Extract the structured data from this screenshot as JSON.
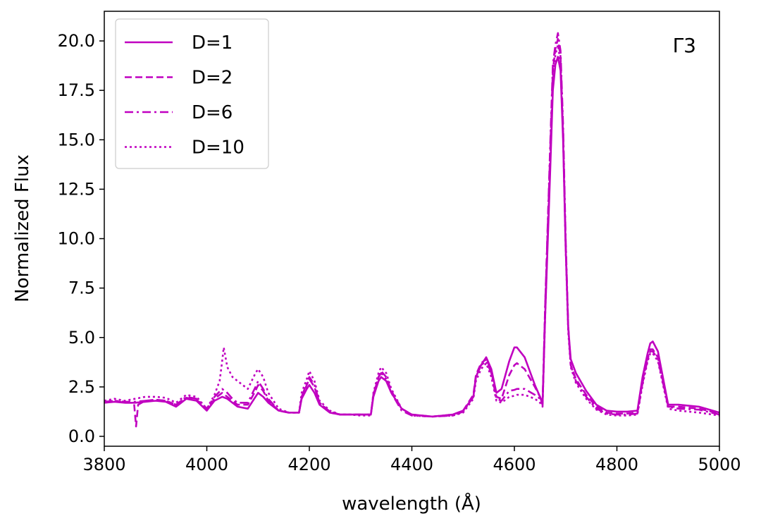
{
  "chart_data": {
    "type": "line",
    "title": "",
    "annotation": "Γ3",
    "xlabel": "wavelength (Å)",
    "ylabel": "Normalized Flux",
    "xlim": [
      3800,
      5000
    ],
    "ylim": [
      -0.5,
      21.5
    ],
    "xticks": [
      3800,
      4000,
      4200,
      4400,
      4600,
      4800,
      5000
    ],
    "yticks": [
      0.0,
      2.5,
      5.0,
      7.5,
      10.0,
      12.5,
      15.0,
      17.5,
      20.0
    ],
    "xtick_labels": [
      "3800",
      "4000",
      "4200",
      "4400",
      "4600",
      "4800",
      "5000"
    ],
    "ytick_labels": [
      "0.0",
      "2.5",
      "5.0",
      "7.5",
      "10.0",
      "12.5",
      "15.0",
      "17.5",
      "20.0"
    ],
    "grid": false,
    "legend_position": "top-left",
    "line_color": "#c000c0",
    "series": [
      {
        "name": "D=1",
        "linestyle": "solid",
        "x": [
          3800,
          3820,
          3840,
          3860,
          3880,
          3900,
          3920,
          3940,
          3960,
          3980,
          4000,
          4015,
          4030,
          4040,
          4050,
          4060,
          4080,
          4095,
          4100,
          4110,
          4120,
          4140,
          4160,
          4180,
          4185,
          4195,
          4200,
          4210,
          4220,
          4240,
          4260,
          4280,
          4300,
          4320,
          4325,
          4335,
          4340,
          4350,
          4360,
          4380,
          4400,
          4440,
          4480,
          4500,
          4520,
          4525,
          4535,
          4545,
          4555,
          4565,
          4575,
          4590,
          4600,
          4605,
          4620,
          4640,
          4650,
          4655,
          4660,
          4670,
          4675,
          4680,
          4685,
          4690,
          4695,
          4700,
          4705,
          4710,
          4720,
          4740,
          4760,
          4780,
          4800,
          4820,
          4840,
          4850,
          4860,
          4865,
          4870,
          4880,
          4900,
          4920,
          4960,
          5000
        ],
        "y": [
          1.7,
          1.75,
          1.7,
          1.7,
          1.75,
          1.8,
          1.75,
          1.5,
          1.9,
          1.8,
          1.3,
          1.8,
          2.0,
          1.9,
          1.7,
          1.5,
          1.4,
          2.0,
          2.2,
          2.0,
          1.7,
          1.3,
          1.2,
          1.2,
          1.9,
          2.4,
          2.6,
          2.2,
          1.6,
          1.2,
          1.1,
          1.1,
          1.1,
          1.1,
          2.0,
          2.8,
          3.0,
          2.8,
          2.2,
          1.4,
          1.1,
          1.0,
          1.1,
          1.3,
          2.0,
          3.0,
          3.6,
          4.0,
          3.4,
          2.2,
          2.4,
          3.8,
          4.5,
          4.5,
          4.0,
          2.6,
          2.0,
          1.6,
          6.0,
          13.5,
          17.5,
          18.8,
          19.2,
          18.5,
          15.0,
          9.5,
          5.5,
          3.9,
          3.2,
          2.3,
          1.6,
          1.3,
          1.25,
          1.25,
          1.3,
          3.0,
          4.2,
          4.7,
          4.8,
          4.3,
          1.6,
          1.6,
          1.5,
          1.2
        ]
      },
      {
        "name": "D=2",
        "linestyle": "dashed",
        "x": [
          3800,
          3820,
          3840,
          3858,
          3862,
          3866,
          3880,
          3900,
          3920,
          3940,
          3960,
          3980,
          4000,
          4015,
          4030,
          4040,
          4050,
          4060,
          4080,
          4095,
          4100,
          4110,
          4120,
          4140,
          4160,
          4180,
          4185,
          4195,
          4200,
          4210,
          4220,
          4240,
          4260,
          4280,
          4300,
          4320,
          4325,
          4335,
          4340,
          4350,
          4360,
          4380,
          4400,
          4440,
          4480,
          4500,
          4520,
          4525,
          4535,
          4545,
          4555,
          4565,
          4575,
          4590,
          4600,
          4605,
          4620,
          4640,
          4650,
          4655,
          4660,
          4670,
          4675,
          4680,
          4685,
          4690,
          4695,
          4700,
          4705,
          4710,
          4720,
          4740,
          4760,
          4780,
          4800,
          4820,
          4840,
          4850,
          4860,
          4865,
          4870,
          4880,
          4900,
          4920,
          4960,
          5000
        ],
        "y": [
          1.7,
          1.8,
          1.7,
          1.7,
          0.5,
          1.6,
          1.8,
          1.85,
          1.8,
          1.6,
          1.95,
          1.85,
          1.35,
          1.9,
          2.2,
          2.0,
          1.8,
          1.6,
          1.6,
          2.3,
          2.6,
          2.3,
          1.8,
          1.3,
          1.2,
          1.2,
          2.0,
          2.6,
          2.9,
          2.5,
          1.7,
          1.25,
          1.1,
          1.1,
          1.1,
          1.1,
          2.1,
          3.0,
          3.3,
          3.0,
          2.3,
          1.4,
          1.1,
          1.0,
          1.1,
          1.3,
          2.1,
          3.1,
          3.7,
          3.9,
          3.3,
          2.0,
          1.9,
          3.1,
          3.6,
          3.7,
          3.4,
          2.5,
          2.0,
          1.7,
          6.5,
          14.5,
          18.5,
          19.6,
          20.1,
          19.2,
          15.5,
          9.8,
          5.5,
          3.6,
          2.9,
          2.1,
          1.5,
          1.2,
          1.15,
          1.15,
          1.2,
          2.8,
          4.0,
          4.4,
          4.4,
          4.0,
          1.5,
          1.5,
          1.4,
          1.15
        ]
      },
      {
        "name": "D=6",
        "linestyle": "dashdot",
        "x": [
          3800,
          3820,
          3840,
          3860,
          3880,
          3900,
          3920,
          3940,
          3960,
          3980,
          4000,
          4015,
          4030,
          4040,
          4050,
          4060,
          4080,
          4095,
          4100,
          4110,
          4120,
          4140,
          4160,
          4180,
          4185,
          4195,
          4200,
          4210,
          4220,
          4240,
          4260,
          4280,
          4300,
          4320,
          4325,
          4335,
          4340,
          4350,
          4360,
          4380,
          4400,
          4440,
          4480,
          4500,
          4520,
          4525,
          4535,
          4545,
          4555,
          4565,
          4575,
          4590,
          4600,
          4605,
          4620,
          4640,
          4650,
          4655,
          4660,
          4670,
          4675,
          4680,
          4685,
          4690,
          4695,
          4700,
          4705,
          4710,
          4720,
          4740,
          4760,
          4780,
          4800,
          4820,
          4840,
          4850,
          4860,
          4865,
          4870,
          4880,
          4900,
          4920,
          4960,
          5000
        ],
        "y": [
          1.75,
          1.8,
          1.75,
          1.75,
          1.8,
          1.85,
          1.8,
          1.6,
          2.0,
          1.9,
          1.4,
          2.0,
          2.4,
          2.2,
          1.9,
          1.7,
          1.7,
          2.5,
          2.8,
          2.4,
          1.9,
          1.3,
          1.2,
          1.2,
          2.0,
          2.7,
          3.0,
          2.6,
          1.7,
          1.2,
          1.1,
          1.1,
          1.1,
          1.1,
          2.1,
          3.0,
          3.2,
          2.9,
          2.2,
          1.3,
          1.05,
          1.0,
          1.05,
          1.25,
          2.0,
          3.0,
          3.6,
          3.8,
          3.2,
          1.9,
          1.8,
          2.3,
          2.35,
          2.4,
          2.4,
          2.1,
          1.9,
          1.6,
          6.5,
          14.8,
          18.8,
          19.8,
          20.4,
          19.5,
          15.8,
          10.0,
          5.6,
          3.6,
          2.8,
          2.0,
          1.4,
          1.15,
          1.1,
          1.1,
          1.15,
          2.7,
          3.9,
          4.3,
          4.3,
          3.9,
          1.5,
          1.4,
          1.35,
          1.1
        ]
      },
      {
        "name": "D=10",
        "linestyle": "dotted",
        "x": [
          3800,
          3820,
          3840,
          3860,
          3880,
          3900,
          3920,
          3940,
          3960,
          3980,
          4000,
          4015,
          4025,
          4030,
          4033,
          4040,
          4050,
          4060,
          4080,
          4095,
          4100,
          4110,
          4120,
          4140,
          4160,
          4180,
          4185,
          4195,
          4200,
          4210,
          4220,
          4240,
          4260,
          4280,
          4300,
          4320,
          4325,
          4335,
          4340,
          4350,
          4360,
          4380,
          4400,
          4440,
          4480,
          4500,
          4520,
          4525,
          4535,
          4545,
          4555,
          4565,
          4575,
          4590,
          4600,
          4605,
          4620,
          4640,
          4650,
          4655,
          4660,
          4670,
          4675,
          4680,
          4685,
          4690,
          4695,
          4700,
          4705,
          4710,
          4720,
          4740,
          4760,
          4780,
          4800,
          4820,
          4840,
          4850,
          4860,
          4865,
          4870,
          4880,
          4900,
          4920,
          4960,
          5000
        ],
        "y": [
          1.8,
          1.9,
          1.8,
          1.9,
          2.0,
          2.0,
          1.95,
          1.7,
          2.1,
          2.0,
          1.4,
          2.1,
          2.8,
          3.8,
          4.5,
          3.5,
          3.0,
          2.8,
          2.4,
          3.2,
          3.4,
          3.0,
          2.2,
          1.4,
          1.2,
          1.2,
          2.2,
          2.9,
          3.3,
          2.8,
          1.8,
          1.3,
          1.1,
          1.1,
          1.05,
          1.05,
          2.2,
          3.2,
          3.5,
          3.2,
          2.4,
          1.4,
          1.05,
          1.0,
          1.05,
          1.2,
          1.9,
          2.8,
          3.4,
          3.7,
          3.0,
          1.8,
          1.7,
          2.0,
          2.05,
          2.1,
          2.1,
          1.9,
          1.7,
          1.5,
          6.0,
          14.2,
          18.0,
          19.3,
          19.8,
          18.9,
          15.2,
          9.5,
          5.3,
          3.5,
          2.7,
          1.9,
          1.35,
          1.1,
          1.05,
          1.05,
          1.1,
          2.6,
          3.8,
          4.2,
          4.2,
          3.8,
          1.4,
          1.3,
          1.2,
          1.05
        ]
      }
    ]
  }
}
